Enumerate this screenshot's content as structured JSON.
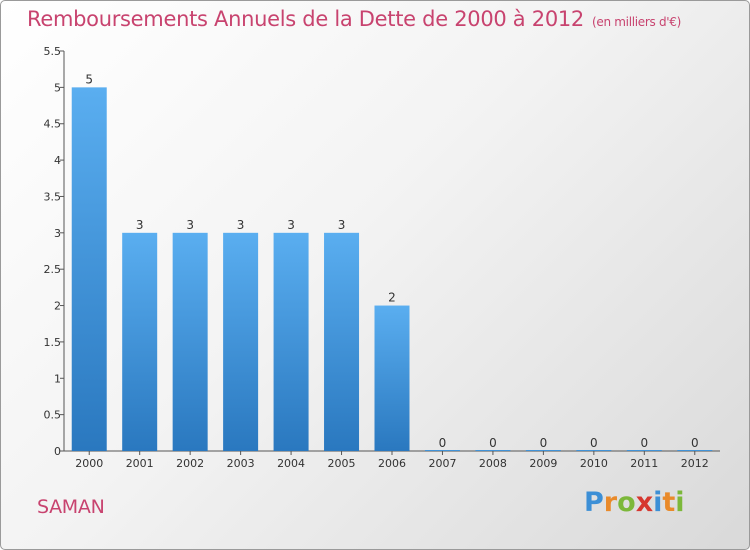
{
  "header": {
    "title": "Remboursements Annuels de la Dette de 2000 à 2012",
    "unit": "(en milliers d'€)"
  },
  "commune": "SAMAN",
  "logo": {
    "text": "Proxiti",
    "letters": [
      {
        "ch": "P",
        "color": "#3c8fd6"
      },
      {
        "ch": "r",
        "color": "#e98a2a"
      },
      {
        "ch": "o",
        "color": "#7cb83a"
      },
      {
        "ch": "x",
        "color": "#d6372f"
      },
      {
        "ch": "i",
        "color": "#3c8fd6"
      },
      {
        "ch": "t",
        "color": "#e98a2a"
      },
      {
        "ch": "i",
        "color": "#7cb83a"
      }
    ]
  },
  "chart_data": {
    "type": "bar",
    "title": "Remboursements Annuels de la Dette de 2000 à 2012",
    "xlabel": "",
    "ylabel": "",
    "categories": [
      "2000",
      "2001",
      "2002",
      "2003",
      "2004",
      "2005",
      "2006",
      "2007",
      "2008",
      "2009",
      "2010",
      "2011",
      "2012"
    ],
    "values": [
      5,
      3,
      3,
      3,
      3,
      3,
      2,
      0,
      0,
      0,
      0,
      0,
      0
    ],
    "data_labels": [
      "5",
      "3",
      "3",
      "3",
      "3",
      "3",
      "2",
      "0",
      "0",
      "0",
      "0",
      "0",
      "0"
    ],
    "ylim": [
      0,
      5.5
    ],
    "yticks": [
      0,
      0.5,
      1,
      1.5,
      2,
      2.5,
      3,
      3.5,
      4,
      4.5,
      5,
      5.5
    ],
    "ytick_labels": [
      "0",
      "0.5",
      "1",
      "1.5",
      "2",
      "2.5",
      "3",
      "3.5",
      "4",
      "4.5",
      "5",
      "5.5"
    ],
    "bar_color": "#3f97dc",
    "grid": false,
    "legend": "none"
  }
}
